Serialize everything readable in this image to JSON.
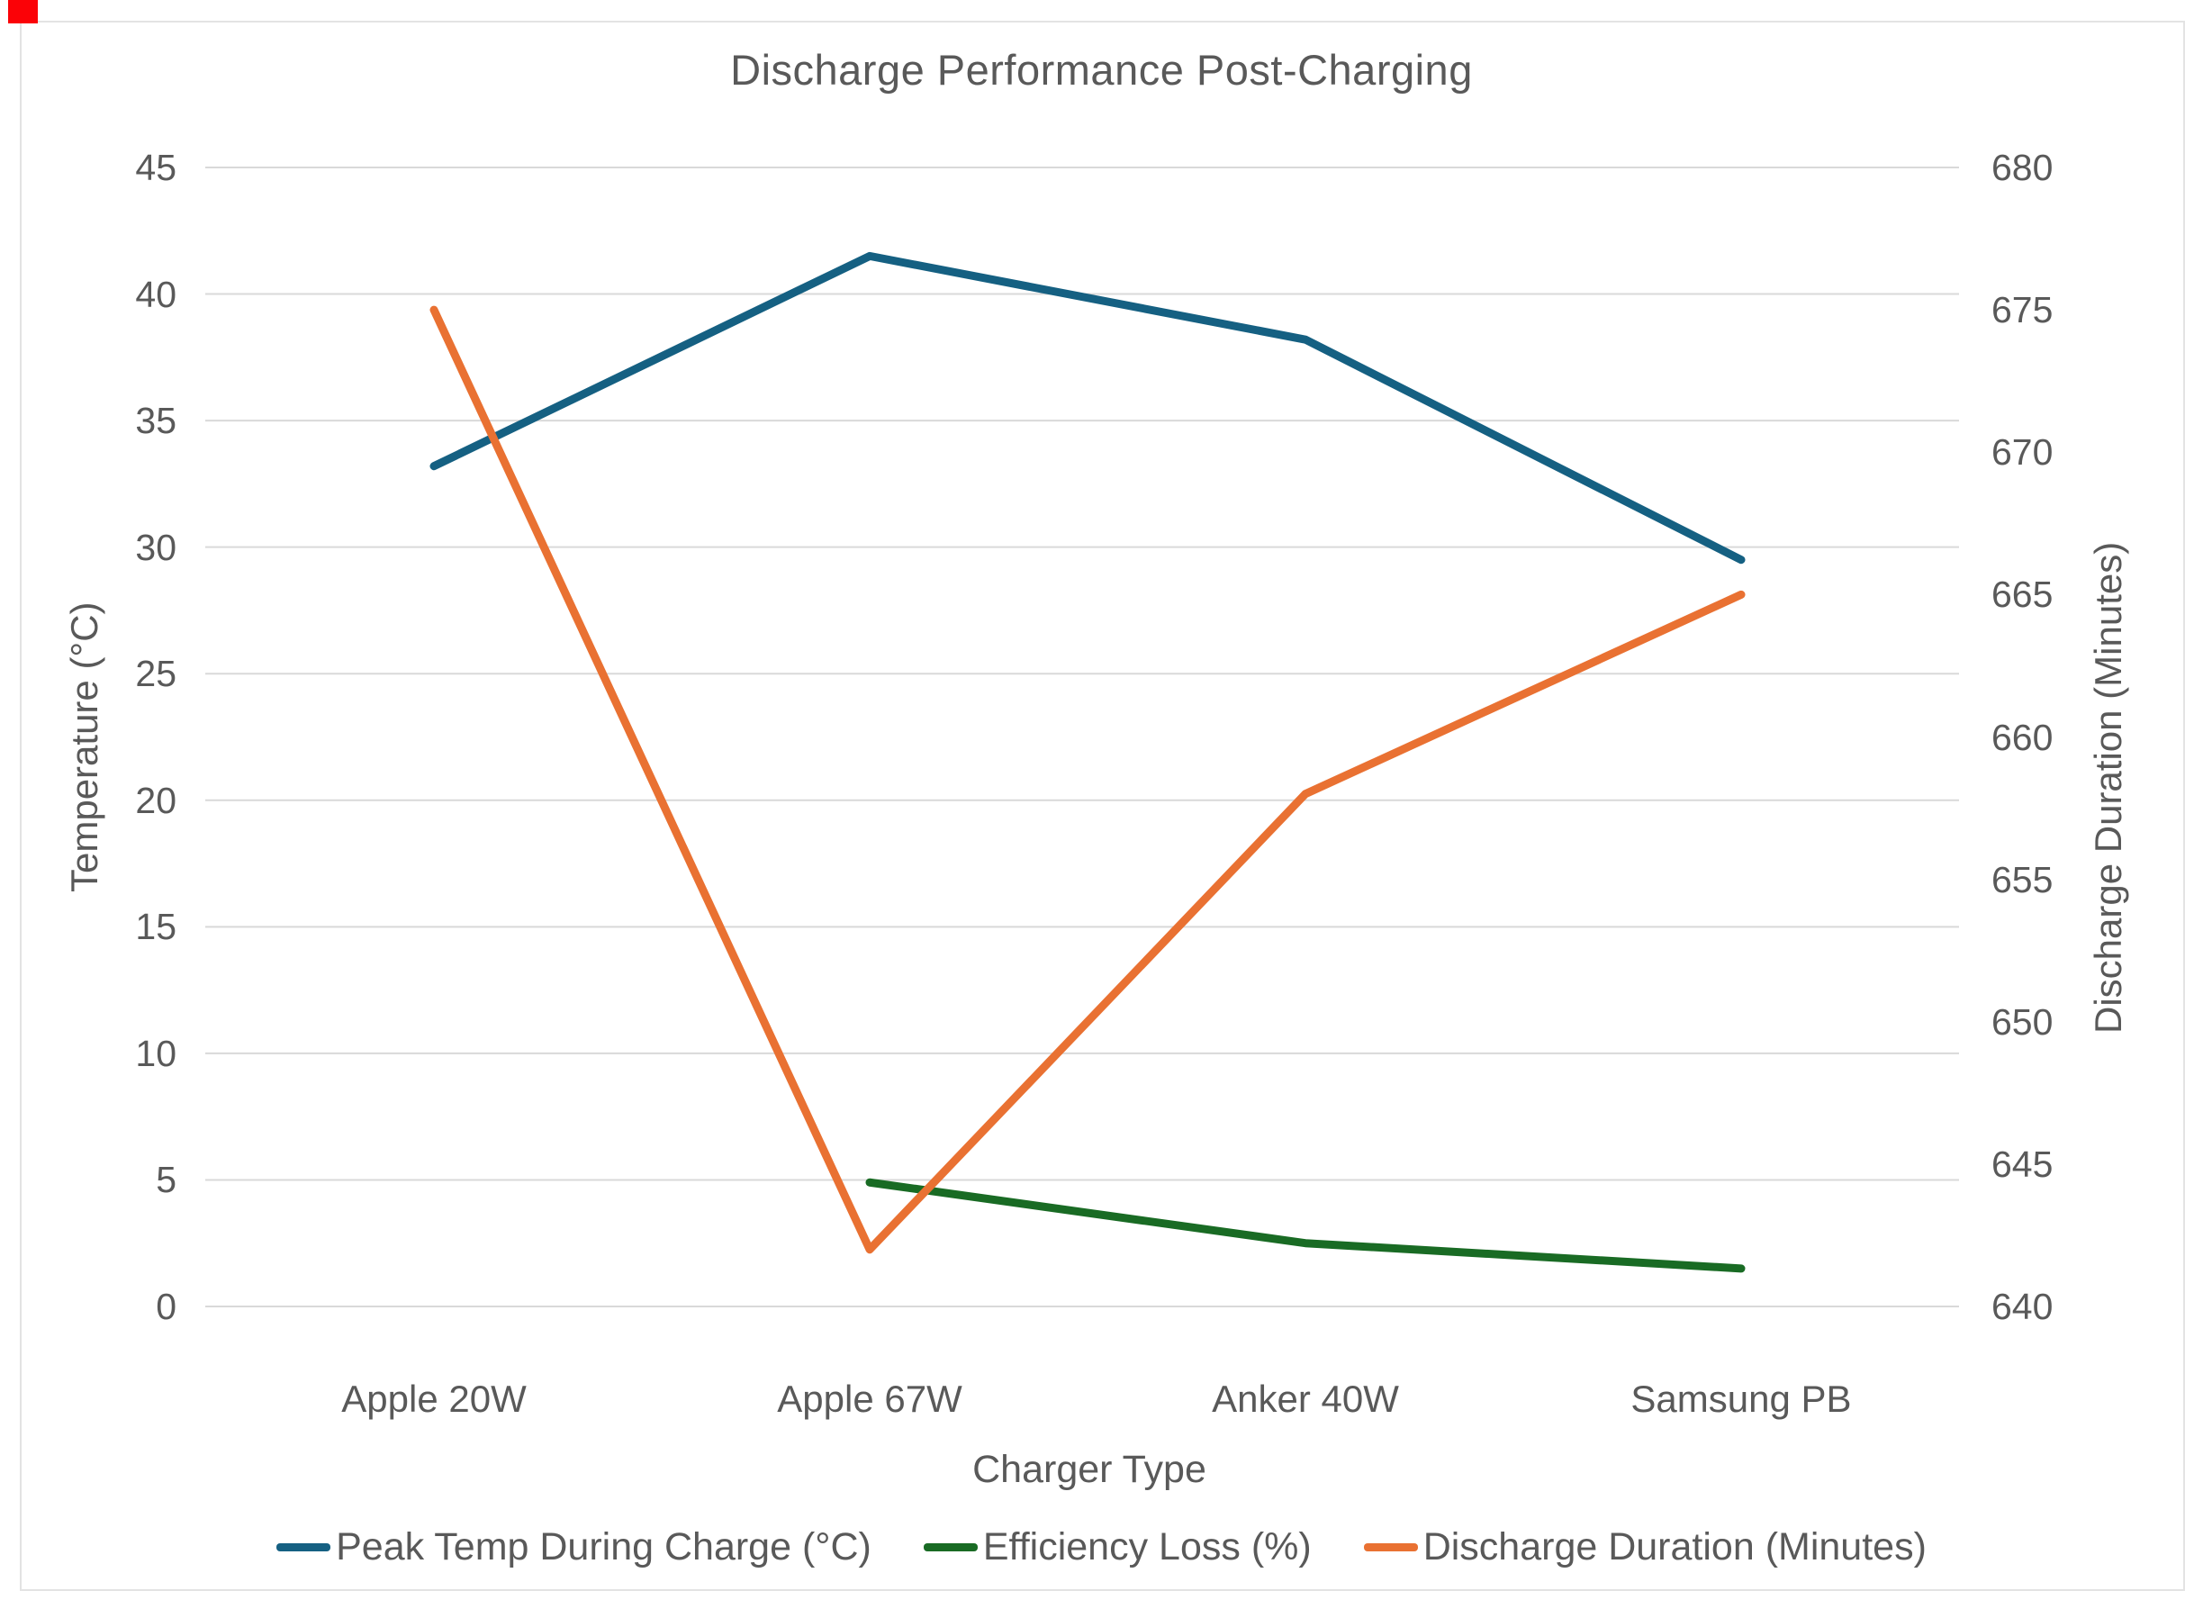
{
  "chart_data": {
    "type": "line",
    "title": "Discharge Performance Post-Charging",
    "categories": [
      "Apple 20W",
      "Apple 67W",
      "Anker 40W",
      "Samsung PB"
    ],
    "series": [
      {
        "name": "Peak Temp During Charge (°C)",
        "axis": "left",
        "color": "#156082",
        "values": [
          33.2,
          41.5,
          38.2,
          29.5
        ]
      },
      {
        "name": "Efficiency Loss (%)",
        "axis": "left",
        "color": "#196B24",
        "values": [
          null,
          4.9,
          2.5,
          1.5
        ]
      },
      {
        "name": "Discharge Duration (Minutes)",
        "axis": "right",
        "color": "#E97132",
        "values": [
          675,
          642,
          658,
          665
        ]
      }
    ],
    "xlabel": "Charger Type",
    "ylabel_left": "Temperature (°C)",
    "ylabel_right": "Discharge Duration (Minutes)",
    "ylim_left": [
      0,
      45
    ],
    "ylim_right": [
      640,
      680
    ],
    "left_ticks": [
      0,
      5,
      10,
      15,
      20,
      25,
      30,
      35,
      40,
      45
    ],
    "right_ticks": [
      640,
      645,
      650,
      655,
      660,
      665,
      670,
      675,
      680
    ],
    "grid": "horizontal",
    "gridline_color": "#D9D9D9",
    "text_color": "#595959",
    "legend_position": "bottom"
  }
}
